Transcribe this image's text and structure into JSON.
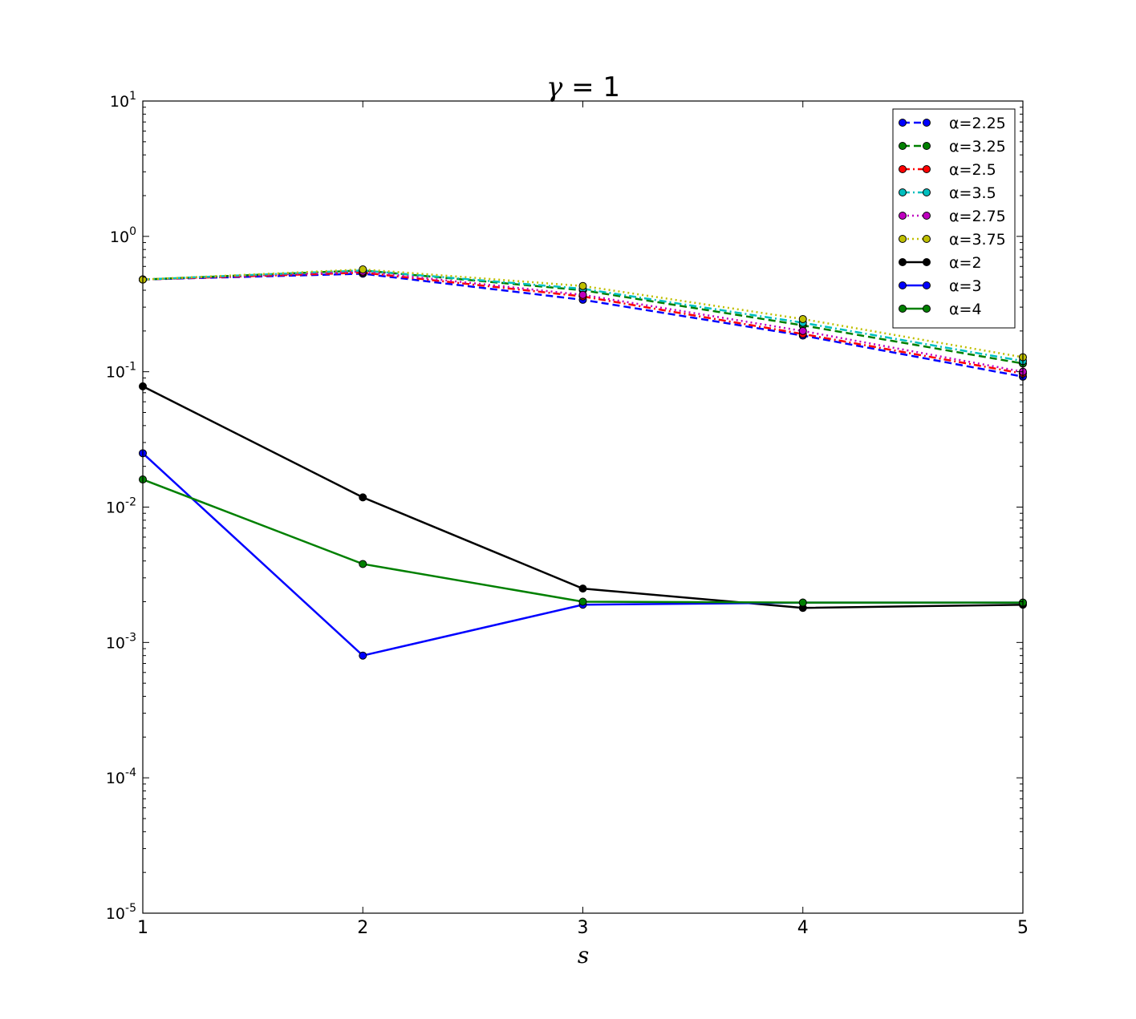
{
  "chart_data": {
    "type": "line",
    "title_symbol": "γ",
    "title_rest": " = 1",
    "xlabel": "s",
    "ylabel": "",
    "x_scale": "linear",
    "y_scale": "log",
    "xlim": [
      1,
      5
    ],
    "ylim": [
      1e-05,
      10
    ],
    "x": [
      1,
      2,
      3,
      4,
      5
    ],
    "x_ticks": [
      "1",
      "2",
      "3",
      "4",
      "5"
    ],
    "y_ticks": [
      {
        "base": "10",
        "exp": "1",
        "value": 10
      },
      {
        "base": "10",
        "exp": "0",
        "value": 1
      },
      {
        "base": "10",
        "exp": "-1",
        "value": 0.1
      },
      {
        "base": "10",
        "exp": "-2",
        "value": 0.01
      },
      {
        "base": "10",
        "exp": "-3",
        "value": 0.001
      },
      {
        "base": "10",
        "exp": "-4",
        "value": 0.0001
      },
      {
        "base": "10",
        "exp": "-5",
        "value": 1e-05
      }
    ],
    "grid": false,
    "legend_position": "top-right",
    "series": [
      {
        "name": "α=2.25",
        "color": "#0000ff",
        "style": "dashed",
        "values": [
          0.48,
          0.53,
          0.34,
          0.185,
          0.092
        ]
      },
      {
        "name": "α=3.25",
        "color": "#008000",
        "style": "dashed",
        "values": [
          0.48,
          0.56,
          0.4,
          0.22,
          0.115
        ]
      },
      {
        "name": "α=2.5",
        "color": "#ff0000",
        "style": "dashdot",
        "values": [
          0.48,
          0.54,
          0.36,
          0.19,
          0.097
        ]
      },
      {
        "name": "α=3.5",
        "color": "#00bfbf",
        "style": "dashdot",
        "values": [
          0.48,
          0.56,
          0.41,
          0.23,
          0.12
        ]
      },
      {
        "name": "α=2.75",
        "color": "#bf00bf",
        "style": "dotted",
        "values": [
          0.48,
          0.55,
          0.37,
          0.2,
          0.1
        ]
      },
      {
        "name": "α=3.75",
        "color": "#bfbf00",
        "style": "dotted",
        "values": [
          0.48,
          0.57,
          0.43,
          0.245,
          0.128
        ]
      },
      {
        "name": "α=2",
        "color": "#000000",
        "style": "solid",
        "values": [
          0.078,
          0.0118,
          0.0025,
          0.0018,
          0.0019
        ]
      },
      {
        "name": "α=3",
        "color": "#0000ff",
        "style": "solid",
        "values": [
          0.025,
          0.0008,
          0.0019,
          0.00197,
          0.00197
        ]
      },
      {
        "name": "α=4",
        "color": "#008000",
        "style": "solid",
        "values": [
          0.016,
          0.0038,
          0.002,
          0.00197,
          0.00197
        ]
      }
    ]
  }
}
